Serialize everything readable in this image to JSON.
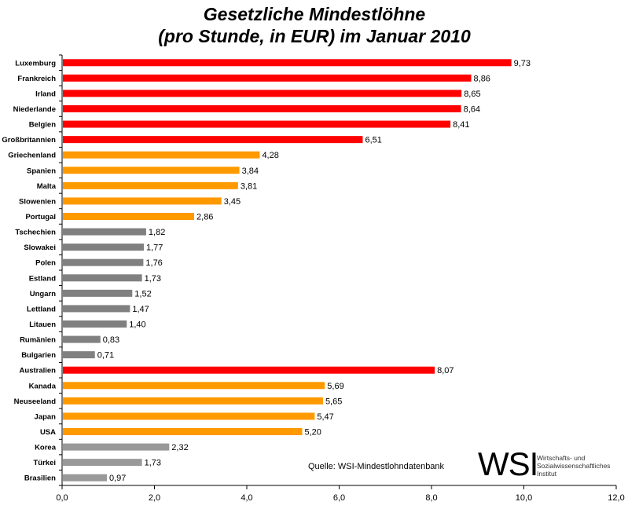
{
  "chart_data": {
    "type": "bar",
    "orientation": "horizontal",
    "title": "Gesetzliche Mindestlöhne",
    "subtitle": "(pro Stunde, in EUR) im Januar 2010",
    "xlim": [
      0,
      12
    ],
    "xticks": [
      "0,0",
      "2,0",
      "4,0",
      "6,0",
      "8,0",
      "10,0",
      "12,0"
    ],
    "grid": false,
    "categories": [
      "Luxemburg",
      "Frankreich",
      "Irland",
      "Niederlande",
      "Belgien",
      "Großbritannien",
      "Griechenland",
      "Spanien",
      "Malta",
      "Slowenien",
      "Portugal",
      "Tschechien",
      "Slowakei",
      "Polen",
      "Estland",
      "Ungarn",
      "Lettland",
      "Litauen",
      "Rumänien",
      "Bulgarien",
      "Australien",
      "Kanada",
      "Neuseeland",
      "Japan",
      "USA",
      "Korea",
      "Türkei",
      "Brasilien"
    ],
    "values": [
      9.73,
      8.86,
      8.65,
      8.64,
      8.41,
      6.51,
      4.28,
      3.84,
      3.81,
      3.45,
      2.86,
      1.82,
      1.77,
      1.76,
      1.73,
      1.52,
      1.47,
      1.4,
      0.83,
      0.71,
      8.07,
      5.69,
      5.65,
      5.47,
      5.2,
      2.32,
      1.73,
      0.97
    ],
    "value_labels": [
      "9,73",
      "8,86",
      "8,65",
      "8,64",
      "8,41",
      "6,51",
      "4,28",
      "3,84",
      "3,81",
      "3,45",
      "2,86",
      "1,82",
      "1,77",
      "1,76",
      "1,73",
      "1,52",
      "1,47",
      "1,40",
      "0,83",
      "0,71",
      "8,07",
      "5,69",
      "5,65",
      "5,47",
      "5,20",
      "2,32",
      "1,73",
      "0,97"
    ],
    "bar_colors": [
      "#ff0000",
      "#ff0000",
      "#ff0000",
      "#ff0000",
      "#ff0000",
      "#ff0000",
      "#ff9900",
      "#ff9900",
      "#ff9900",
      "#ff9900",
      "#ff9900",
      "#808080",
      "#808080",
      "#808080",
      "#808080",
      "#808080",
      "#808080",
      "#808080",
      "#808080",
      "#808080",
      "#ff0000",
      "#ff9900",
      "#ff9900",
      "#ff9900",
      "#ff9900",
      "#999999",
      "#999999",
      "#999999"
    ]
  },
  "source": "Quelle: WSI-Mindestlohndatenbank",
  "logo": {
    "text": "WSI",
    "line1": "Wirtschafts- und",
    "line2": "Sozialwissenschaftliches",
    "line3": "Institut"
  }
}
